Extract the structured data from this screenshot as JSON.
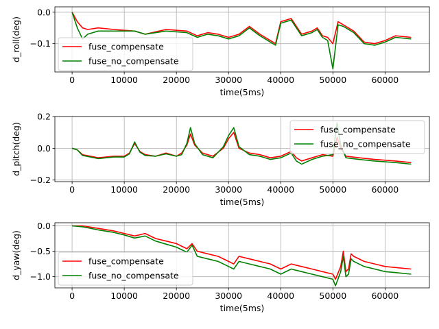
{
  "chart_data": [
    {
      "type": "line",
      "xlabel": "time(5ms)",
      "ylabel": "d_roll(deg)",
      "xlim": [
        -3300,
        68500
      ],
      "ylim": [
        -0.19,
        0.017
      ],
      "xticks": [
        0,
        10000,
        20000,
        30000,
        40000,
        50000,
        60000
      ],
      "xtick_labels": [
        "0",
        "10000",
        "20000",
        "30000",
        "40000",
        "50000",
        "60000"
      ],
      "yticks": [
        0.0,
        -0.1
      ],
      "ytick_labels": [
        "0.0",
        "−0.1"
      ],
      "grid": true,
      "legend": "center-left",
      "series": [
        {
          "name": "fuse_compensate",
          "color": "#ff0000",
          "x": [
            0,
            1000,
            2000,
            3000,
            5000,
            8000,
            12000,
            14000,
            18000,
            22000,
            24000,
            26000,
            28000,
            30000,
            32000,
            34000,
            36000,
            38000,
            39000,
            40000,
            42000,
            44000,
            46000,
            47000,
            48000,
            49000,
            50000,
            51000,
            52000,
            54000,
            56000,
            58000,
            60000,
            62000,
            65000
          ],
          "y": [
            0.0,
            -0.03,
            -0.05,
            -0.055,
            -0.05,
            -0.055,
            -0.06,
            -0.07,
            -0.055,
            -0.06,
            -0.075,
            -0.065,
            -0.07,
            -0.08,
            -0.07,
            -0.045,
            -0.07,
            -0.09,
            -0.1,
            -0.03,
            -0.02,
            -0.07,
            -0.06,
            -0.05,
            -0.075,
            -0.08,
            -0.1,
            -0.03,
            -0.04,
            -0.06,
            -0.095,
            -0.1,
            -0.09,
            -0.075,
            -0.08
          ]
        },
        {
          "name": "fuse_no_compensate",
          "color": "#008000",
          "x": [
            0,
            1000,
            2000,
            3000,
            5000,
            8000,
            12000,
            14000,
            18000,
            22000,
            24000,
            26000,
            28000,
            30000,
            32000,
            34000,
            36000,
            38000,
            39000,
            40000,
            42000,
            44000,
            46000,
            47000,
            48000,
            49000,
            50000,
            51000,
            52000,
            54000,
            56000,
            58000,
            60000,
            62000,
            65000
          ],
          "y": [
            0.0,
            -0.05,
            -0.085,
            -0.07,
            -0.06,
            -0.06,
            -0.06,
            -0.07,
            -0.06,
            -0.065,
            -0.08,
            -0.07,
            -0.075,
            -0.085,
            -0.075,
            -0.05,
            -0.075,
            -0.095,
            -0.105,
            -0.035,
            -0.025,
            -0.075,
            -0.065,
            -0.055,
            -0.08,
            -0.09,
            -0.18,
            -0.04,
            -0.045,
            -0.065,
            -0.1,
            -0.105,
            -0.095,
            -0.08,
            -0.085
          ]
        }
      ]
    },
    {
      "type": "line",
      "xlabel": "time(5ms)",
      "ylabel": "d_pitch(deg)",
      "xlim": [
        -3300,
        68500
      ],
      "ylim": [
        -0.21,
        0.2
      ],
      "xticks": [
        0,
        10000,
        20000,
        30000,
        40000,
        50000,
        60000
      ],
      "xtick_labels": [
        "0",
        "10000",
        "20000",
        "30000",
        "40000",
        "50000",
        "60000"
      ],
      "yticks": [
        0.2,
        0.0,
        -0.2
      ],
      "ytick_labels": [
        "0.2",
        "0.0",
        "−0.2"
      ],
      "grid": true,
      "legend": "top-right",
      "series": [
        {
          "name": "fuse_compensate",
          "color": "#ff0000",
          "x": [
            0,
            1000,
            2000,
            5000,
            8000,
            10000,
            11000,
            12000,
            13000,
            14000,
            16000,
            18000,
            20000,
            21000,
            22000,
            22700,
            23500,
            25000,
            27000,
            29000,
            30000,
            31000,
            32000,
            34000,
            36000,
            38000,
            40000,
            42000,
            43000,
            44000,
            46000,
            48000,
            50000,
            50800,
            51500,
            52500,
            55000,
            58000,
            62000,
            65000
          ],
          "y": [
            0.0,
            -0.01,
            -0.04,
            -0.06,
            -0.05,
            -0.05,
            -0.03,
            0.03,
            -0.02,
            -0.04,
            -0.05,
            -0.03,
            -0.05,
            -0.03,
            0.02,
            0.09,
            0.02,
            -0.03,
            -0.05,
            0.0,
            0.06,
            0.1,
            0.0,
            -0.03,
            -0.04,
            -0.06,
            -0.05,
            -0.02,
            -0.06,
            -0.08,
            -0.06,
            -0.04,
            -0.05,
            0.07,
            0.0,
            -0.05,
            -0.06,
            -0.07,
            -0.08,
            -0.09
          ]
        },
        {
          "name": "fuse_no_compensate",
          "color": "#008000",
          "x": [
            0,
            1000,
            2000,
            5000,
            8000,
            10000,
            11000,
            12000,
            13000,
            14000,
            16000,
            18000,
            20000,
            21000,
            22000,
            22700,
            23500,
            25000,
            27000,
            29000,
            30000,
            31000,
            32000,
            34000,
            36000,
            38000,
            40000,
            42000,
            43000,
            44000,
            46000,
            48000,
            50000,
            50800,
            51500,
            52500,
            55000,
            58000,
            62000,
            65000
          ],
          "y": [
            0.0,
            -0.01,
            -0.045,
            -0.065,
            -0.055,
            -0.055,
            -0.035,
            0.04,
            -0.025,
            -0.045,
            -0.05,
            -0.035,
            -0.05,
            -0.04,
            0.03,
            0.13,
            0.03,
            -0.04,
            -0.06,
            0.01,
            0.08,
            0.13,
            0.01,
            -0.04,
            -0.05,
            -0.07,
            -0.06,
            -0.03,
            -0.08,
            -0.1,
            -0.07,
            -0.05,
            -0.04,
            0.16,
            0.02,
            -0.06,
            -0.07,
            -0.08,
            -0.09,
            -0.1
          ]
        }
      ]
    },
    {
      "type": "line",
      "xlabel": "time(5ms)",
      "ylabel": "d_yaw(deg)",
      "xlim": [
        -3300,
        68500
      ],
      "ylim": [
        -1.22,
        0.06
      ],
      "xticks": [
        0,
        10000,
        20000,
        30000,
        40000,
        50000,
        60000
      ],
      "xtick_labels": [
        "0",
        "10000",
        "20000",
        "30000",
        "40000",
        "50000",
        "60000"
      ],
      "yticks": [
        0.0,
        -0.5,
        -1.0
      ],
      "ytick_labels": [
        "0.0",
        "−0.5",
        "−1.0"
      ],
      "grid": true,
      "legend": "bottom-left",
      "series": [
        {
          "name": "fuse_compensate",
          "color": "#ff0000",
          "x": [
            0,
            2000,
            5000,
            8000,
            10000,
            12000,
            14000,
            16000,
            18000,
            20000,
            22000,
            23000,
            24000,
            26000,
            28000,
            30000,
            31000,
            32000,
            34000,
            36000,
            38000,
            40000,
            42000,
            44000,
            46000,
            48000,
            50000,
            50500,
            51500,
            52000,
            52500,
            53000,
            53500,
            54000,
            56000,
            58000,
            60000,
            62000,
            65000
          ],
          "y": [
            0.0,
            0.0,
            -0.05,
            -0.1,
            -0.15,
            -0.2,
            -0.15,
            -0.25,
            -0.3,
            -0.35,
            -0.45,
            -0.35,
            -0.5,
            -0.55,
            -0.6,
            -0.7,
            -0.75,
            -0.6,
            -0.65,
            -0.7,
            -0.75,
            -0.85,
            -0.75,
            -0.8,
            -0.85,
            -0.9,
            -0.95,
            -1.05,
            -0.8,
            -0.5,
            -0.9,
            -0.85,
            -0.55,
            -0.6,
            -0.7,
            -0.75,
            -0.8,
            -0.82,
            -0.85
          ]
        },
        {
          "name": "fuse_no_compensate",
          "color": "#008000",
          "x": [
            0,
            2000,
            5000,
            8000,
            10000,
            12000,
            14000,
            16000,
            18000,
            20000,
            22000,
            23000,
            24000,
            26000,
            28000,
            30000,
            31000,
            32000,
            34000,
            36000,
            38000,
            40000,
            42000,
            44000,
            46000,
            48000,
            50000,
            50500,
            51500,
            52000,
            52500,
            53000,
            53500,
            54000,
            56000,
            58000,
            60000,
            62000,
            65000
          ],
          "y": [
            0.0,
            -0.02,
            -0.08,
            -0.13,
            -0.18,
            -0.24,
            -0.2,
            -0.3,
            -0.36,
            -0.42,
            -0.52,
            -0.38,
            -0.6,
            -0.65,
            -0.7,
            -0.8,
            -0.85,
            -0.7,
            -0.75,
            -0.8,
            -0.85,
            -0.95,
            -0.85,
            -0.9,
            -0.95,
            -1.0,
            -1.05,
            -1.18,
            -0.9,
            -0.6,
            -1.0,
            -0.95,
            -0.65,
            -0.7,
            -0.8,
            -0.85,
            -0.9,
            -0.92,
            -0.95
          ]
        }
      ]
    }
  ]
}
